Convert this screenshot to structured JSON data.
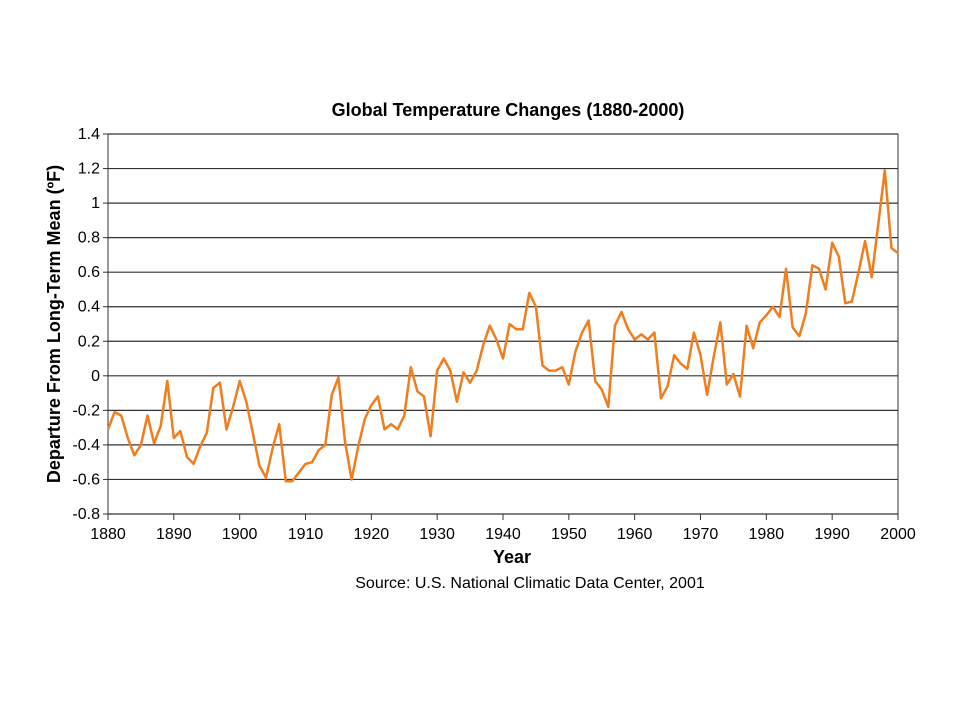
{
  "chart_data": {
    "type": "line",
    "title": "Global Temperature Changes (1880-2000)",
    "xlabel": "Year",
    "ylabel": "Departure From Long-Term Mean (ºF)",
    "source": "Source: U.S. National Climatic Data Center, 2001",
    "xlim": [
      1880,
      2000
    ],
    "ylim": [
      -0.8,
      1.4
    ],
    "x_ticks": [
      "1880",
      "1890",
      "1900",
      "1910",
      "1920",
      "1930",
      "1940",
      "1950",
      "1960",
      "1970",
      "1980",
      "1990",
      "2000"
    ],
    "y_ticks": [
      "1.4",
      "1.2",
      "1",
      "0.8",
      "0.6",
      "0.4",
      "0.2",
      "0",
      "-0.2",
      "-0.4",
      "-0.6",
      "-0.8"
    ],
    "grid": "horizontal",
    "line_color": "#f07d1e",
    "series": [
      {
        "x": [
          1880,
          1881,
          1882,
          1883,
          1884,
          1885,
          1886,
          1887,
          1888,
          1889,
          1890,
          1891,
          1892,
          1893,
          1894,
          1895,
          1896,
          1897,
          1898,
          1899,
          1900,
          1901,
          1902,
          1903,
          1904,
          1905,
          1906,
          1907,
          1908,
          1909,
          1910,
          1911,
          1912,
          1913,
          1914,
          1915,
          1916,
          1917,
          1918,
          1919,
          1920,
          1921,
          1922,
          1923,
          1924,
          1925,
          1926,
          1927,
          1928,
          1929,
          1930,
          1931,
          1932,
          1933,
          1934,
          1935,
          1936,
          1937,
          1938,
          1939,
          1940,
          1941,
          1942,
          1943,
          1944,
          1945,
          1946,
          1947,
          1948,
          1949,
          1950,
          1951,
          1952,
          1953,
          1954,
          1955,
          1956,
          1957,
          1958,
          1959,
          1960,
          1961,
          1962,
          1963,
          1964,
          1965,
          1966,
          1967,
          1968,
          1969,
          1970,
          1971,
          1972,
          1973,
          1974,
          1975,
          1976,
          1977,
          1978,
          1979,
          1980,
          1981,
          1982,
          1983,
          1984,
          1985,
          1986,
          1987,
          1988,
          1989,
          1990,
          1991,
          1992,
          1993,
          1994,
          1995,
          1996,
          1997,
          1998,
          1999,
          2000
        ],
        "y": [
          -0.31,
          -0.21,
          -0.23,
          -0.36,
          -0.46,
          -0.4,
          -0.23,
          -0.39,
          -0.29,
          -0.03,
          -0.36,
          -0.32,
          -0.47,
          -0.51,
          -0.41,
          -0.33,
          -0.07,
          -0.04,
          -0.31,
          -0.18,
          -0.03,
          -0.15,
          -0.33,
          -0.52,
          -0.59,
          -0.42,
          -0.28,
          -0.61,
          -0.61,
          -0.56,
          -0.51,
          -0.5,
          -0.43,
          -0.4,
          -0.11,
          -0.01,
          -0.38,
          -0.6,
          -0.41,
          -0.25,
          -0.17,
          -0.12,
          -0.31,
          -0.28,
          -0.31,
          -0.23,
          0.05,
          -0.09,
          -0.12,
          -0.35,
          0.03,
          0.1,
          0.03,
          -0.15,
          0.02,
          -0.04,
          0.03,
          0.18,
          0.29,
          0.21,
          0.1,
          0.3,
          0.27,
          0.27,
          0.48,
          0.4,
          0.06,
          0.03,
          0.03,
          0.05,
          -0.05,
          0.14,
          0.25,
          0.32,
          -0.03,
          -0.08,
          -0.18,
          0.29,
          0.37,
          0.27,
          0.21,
          0.24,
          0.21,
          0.25,
          -0.13,
          -0.06,
          0.12,
          0.07,
          0.04,
          0.25,
          0.12,
          -0.11,
          0.11,
          0.31,
          -0.05,
          0.01,
          -0.12,
          0.29,
          0.16,
          0.31,
          0.35,
          0.4,
          0.34,
          0.62,
          0.28,
          0.23,
          0.36,
          0.64,
          0.62,
          0.5,
          0.77,
          0.69,
          0.42,
          0.43,
          0.6,
          0.78,
          0.57,
          0.88,
          1.19,
          0.74,
          0.71
        ]
      }
    ]
  }
}
